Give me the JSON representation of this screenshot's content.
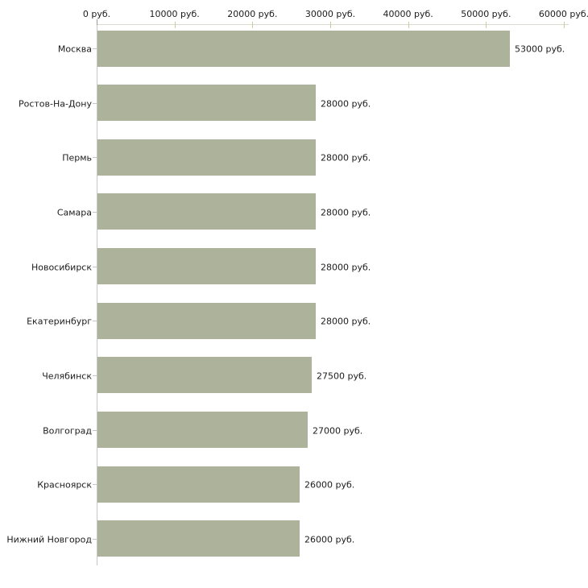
{
  "chart_data": {
    "type": "bar",
    "orientation": "horizontal",
    "title": "",
    "unit": "руб.",
    "categories": [
      "Москва",
      "Ростов-На-Дону",
      "Пермь",
      "Самара",
      "Новосибирск",
      "Екатеринбург",
      "Челябинск",
      "Волгоград",
      "Красноярск",
      "Нижний Новгород"
    ],
    "values": [
      53000,
      28000,
      28000,
      28000,
      28000,
      28000,
      27500,
      27000,
      26000,
      26000
    ],
    "value_labels": [
      "53000 руб.",
      "28000 руб.",
      "28000 руб.",
      "28000 руб.",
      "28000 руб.",
      "28000 руб.",
      "27500 руб.",
      "27000 руб.",
      "26000 руб.",
      "26000 руб."
    ],
    "x_axis": {
      "position": "top",
      "ticks": [
        0,
        10000,
        20000,
        30000,
        40000,
        50000,
        60000
      ],
      "tick_labels": [
        "0 руб.",
        "10000 руб.",
        "20000 руб.",
        "30000 руб.",
        "40000 руб.",
        "50000 руб.",
        "60000 руб."
      ],
      "xlim": [
        0,
        60000
      ]
    },
    "grid": false,
    "legend": false,
    "colors": {
      "bar_fill": "#adb39a",
      "x_axis_line": "#d9dbce",
      "y_axis_line": "#c6c6c6",
      "x_tick": "#c9cc9f",
      "zero_tick": "#999999",
      "category_tick": "#c6c6c6",
      "text": "#1c1c1c",
      "background": "#ffffff"
    }
  }
}
